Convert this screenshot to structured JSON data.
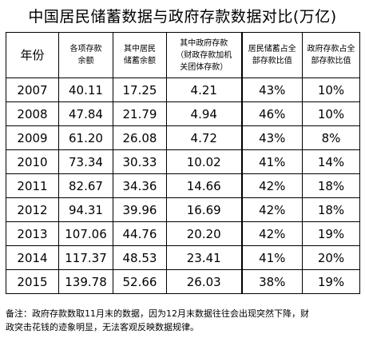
{
  "title": "中国居民储蓄数据与政府存款数据对比(万亿)",
  "table": {
    "headers": {
      "year": "年份",
      "total_deposits": [
        "各项存款",
        "余额"
      ],
      "household_deposits": [
        "其中居民",
        "储蓄余额"
      ],
      "gov_deposits": [
        "其中政府存款",
        "（财政存款加机",
        "关团体存款）"
      ],
      "household_share": [
        "居民储蓄占全",
        "部存款比值"
      ],
      "gov_share": [
        "政府存款占全",
        "部存款比值"
      ]
    },
    "rows": [
      {
        "year": "2007",
        "total": "40.11",
        "household": "17.25",
        "gov": "4.21",
        "household_share": "43%",
        "gov_share": "10%"
      },
      {
        "year": "2008",
        "total": "47.84",
        "household": "21.79",
        "gov": "4.94",
        "household_share": "46%",
        "gov_share": "10%"
      },
      {
        "year": "2009",
        "total": "61.20",
        "household": "26.08",
        "gov": "4.72",
        "household_share": "43%",
        "gov_share": "8%"
      },
      {
        "year": "2010",
        "total": "73.34",
        "household": "30.33",
        "gov": "10.02",
        "household_share": "41%",
        "gov_share": "14%"
      },
      {
        "year": "2011",
        "total": "82.67",
        "household": "34.36",
        "gov": "14.66",
        "household_share": "42%",
        "gov_share": "18%"
      },
      {
        "year": "2012",
        "total": "94.31",
        "household": "39.96",
        "gov": "16.69",
        "household_share": "42%",
        "gov_share": "18%"
      },
      {
        "year": "2013",
        "total": "107.06",
        "household": "44.76",
        "gov": "20.20",
        "household_share": "42%",
        "gov_share": "19%"
      },
      {
        "year": "2014",
        "total": "117.37",
        "household": "48.53",
        "gov": "23.41",
        "household_share": "41%",
        "gov_share": "20%"
      },
      {
        "year": "2015",
        "total": "139.78",
        "household": "52.66",
        "gov": "26.03",
        "household_share": "38%",
        "gov_share": "19%"
      }
    ]
  },
  "note": [
    "备注：政府存款数取11月末的数据，因为12月末数据往往会出现突然下降，财",
    "政突击花钱的迹象明显，无法客观反映数据规律。"
  ]
}
